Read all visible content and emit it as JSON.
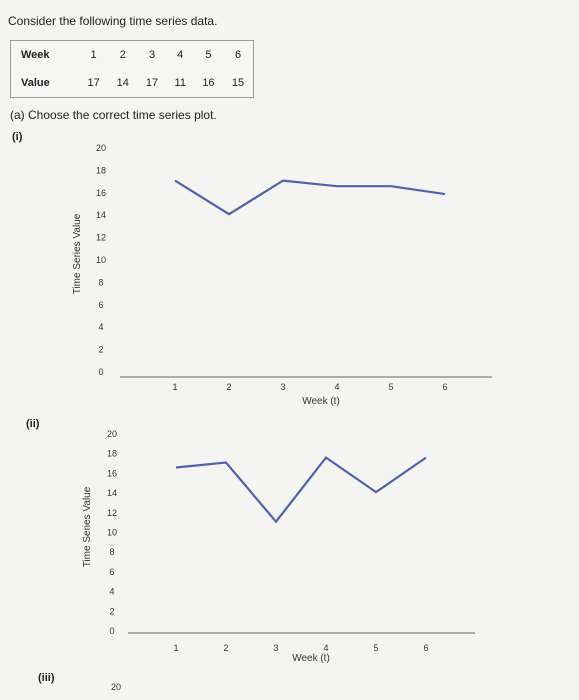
{
  "intro": "Consider the following time series data.",
  "table": {
    "week_label": "Week",
    "value_label": "Value",
    "weeks": [
      "1",
      "2",
      "3",
      "4",
      "5",
      "6"
    ],
    "values": [
      "17",
      "14",
      "17",
      "11",
      "16",
      "15"
    ]
  },
  "question": "(a) Choose the correct time series plot.",
  "options": [
    {
      "label": "(i)"
    },
    {
      "label": "(ii)"
    },
    {
      "label": "(iii)"
    }
  ],
  "plot_line_color": "#5060b0",
  "chart_data": [
    {
      "type": "line",
      "xlabel": "Week (t)",
      "ylabel": "Time Series Value",
      "x": [
        1,
        2,
        3,
        4,
        5,
        6
      ],
      "y": [
        17,
        14,
        17,
        16.5,
        16.5,
        15.8
      ],
      "xticks": [
        "1",
        "2",
        "3",
        "4",
        "5",
        "6"
      ],
      "yticks": [
        "0",
        "2",
        "4",
        "6",
        "8",
        "10",
        "12",
        "14",
        "16",
        "18",
        "20"
      ],
      "ylim": [
        0,
        20
      ]
    },
    {
      "type": "line",
      "xlabel": "Week (t)",
      "ylabel": "Time Series Value",
      "x": [
        1,
        2,
        3,
        4,
        5,
        6
      ],
      "y": [
        16.5,
        17,
        11,
        17.5,
        14,
        17.5
      ],
      "xticks": [
        "1",
        "2",
        "3",
        "4",
        "5",
        "6"
      ],
      "yticks": [
        "0",
        "2",
        "4",
        "6",
        "8",
        "10",
        "12",
        "14",
        "16",
        "18",
        "20"
      ],
      "ylim": [
        0,
        20
      ]
    },
    {
      "type": "line",
      "yticks_visible": [
        "20"
      ]
    }
  ]
}
